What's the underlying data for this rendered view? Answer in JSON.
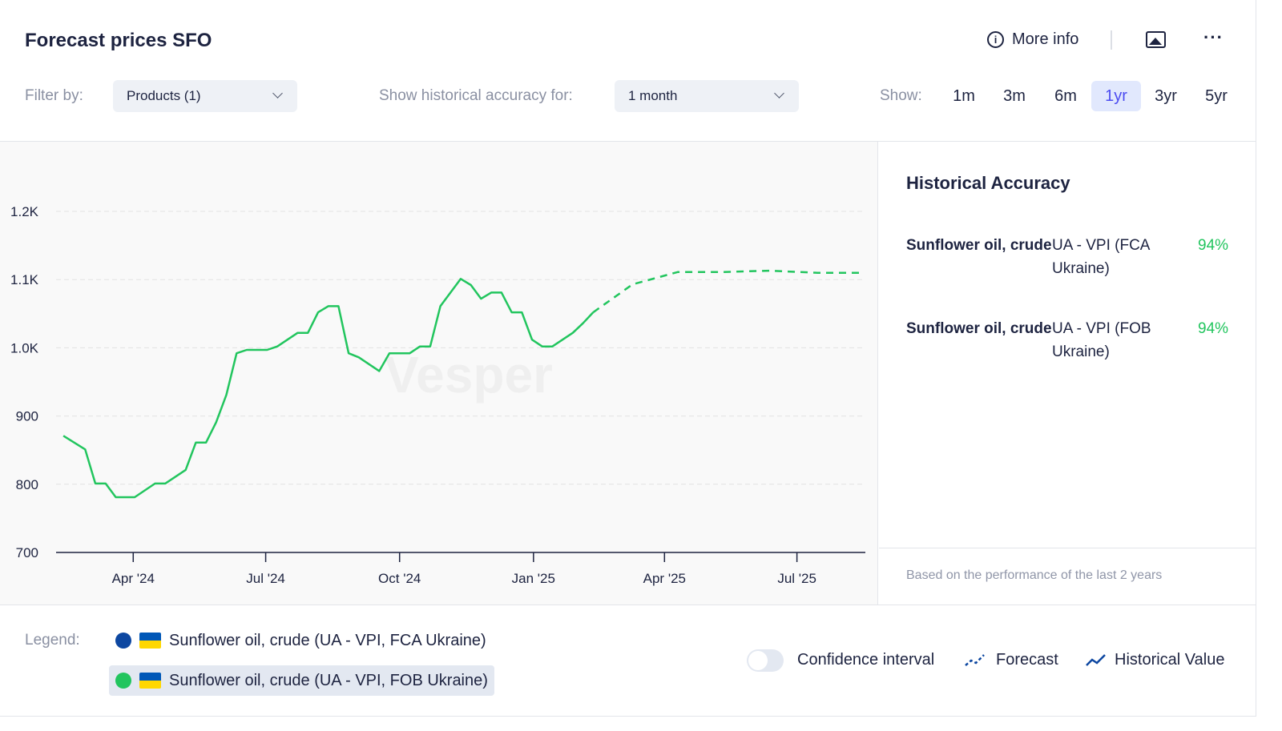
{
  "header": {
    "title": "Forecast prices SFO",
    "more_info": "More info",
    "icons": [
      "info-icon",
      "image-icon",
      "more-icon"
    ]
  },
  "filters": {
    "filter_label": "Filter by:",
    "filter_value": "Products (1)",
    "accuracy_label": "Show historical accuracy for:",
    "accuracy_value": "1 month",
    "show_label": "Show:",
    "ranges": [
      "1m",
      "3m",
      "6m",
      "1yr",
      "3yr",
      "5yr"
    ],
    "active_range": "1yr"
  },
  "panel": {
    "title": "Historical Accuracy",
    "items": [
      {
        "product": "Sunflower oil, crude",
        "market": "UA - VPI (FCA Ukraine)",
        "value": "94%"
      },
      {
        "product": "Sunflower oil, crude",
        "market": "UA - VPI (FOB Ukraine)",
        "value": "94%"
      }
    ],
    "note": "Based on the performance of the last 2 years"
  },
  "legend": {
    "label": "Legend:",
    "items": [
      {
        "label": "Sunflower oil, crude (UA - VPI, FCA Ukraine)",
        "color": "#0d47a1",
        "selected": false
      },
      {
        "label": "Sunflower oil, crude (UA - VPI, FOB Ukraine)",
        "color": "#22c55e",
        "selected": true
      }
    ],
    "confidence": "Confidence interval",
    "confidence_on": false,
    "forecast": "Forecast",
    "historical": "Historical Value"
  },
  "chart_data": {
    "type": "line",
    "watermark": "Vesper",
    "xlim": [
      "2024-02-08",
      "2025-08-17"
    ],
    "ylim": [
      700,
      1250
    ],
    "yticks": [
      700,
      800,
      900,
      1000,
      1100,
      1200
    ],
    "ytick_labels": [
      "700",
      "800",
      "900",
      "1.0K",
      "1.1K",
      "1.2K"
    ],
    "xticks": [
      "2024-04-01",
      "2024-07-01",
      "2024-10-01",
      "2025-01-01",
      "2025-04-01",
      "2025-07-01"
    ],
    "xtick_labels": [
      "Apr '24",
      "Jul '24",
      "Oct '24",
      "Jan '25",
      "Apr '25",
      "Jul '25"
    ],
    "grid": true,
    "color": "#22c55e",
    "series": [
      {
        "kind": "historical",
        "points": [
          [
            "2024-02-13",
            871
          ],
          [
            "2024-02-28",
            851
          ],
          [
            "2024-03-06",
            801
          ],
          [
            "2024-03-13",
            801
          ],
          [
            "2024-03-20",
            781
          ],
          [
            "2024-04-02",
            781
          ],
          [
            "2024-04-16",
            801
          ],
          [
            "2024-04-23",
            801
          ],
          [
            "2024-05-07",
            821
          ],
          [
            "2024-05-14",
            861
          ],
          [
            "2024-05-21",
            861
          ],
          [
            "2024-05-28",
            891
          ],
          [
            "2024-06-04",
            931
          ],
          [
            "2024-06-11",
            992
          ],
          [
            "2024-06-18",
            997
          ],
          [
            "2024-07-02",
            997
          ],
          [
            "2024-07-09",
            1002
          ],
          [
            "2024-07-23",
            1022
          ],
          [
            "2024-07-30",
            1022
          ],
          [
            "2024-08-06",
            1052
          ],
          [
            "2024-08-13",
            1061
          ],
          [
            "2024-08-20",
            1061
          ],
          [
            "2024-08-27",
            992
          ],
          [
            "2024-09-03",
            986
          ],
          [
            "2024-09-17",
            966
          ],
          [
            "2024-09-24",
            992
          ],
          [
            "2024-10-08",
            992
          ],
          [
            "2024-10-15",
            1002
          ],
          [
            "2024-10-22",
            1002
          ],
          [
            "2024-10-29",
            1061
          ],
          [
            "2024-11-12",
            1101
          ],
          [
            "2024-11-19",
            1092
          ],
          [
            "2024-11-26",
            1072
          ],
          [
            "2024-12-03",
            1081
          ],
          [
            "2024-12-10",
            1081
          ],
          [
            "2024-12-17",
            1052
          ],
          [
            "2024-12-24",
            1052
          ],
          [
            "2024-12-31",
            1012
          ],
          [
            "2025-01-07",
            1002
          ],
          [
            "2025-01-14",
            1002
          ],
          [
            "2025-01-28",
            1022
          ],
          [
            "2025-02-04",
            1036
          ],
          [
            "2025-02-11",
            1052
          ]
        ]
      },
      {
        "kind": "forecast",
        "points": [
          [
            "2025-02-11",
            1052
          ],
          [
            "2025-03-10",
            1093
          ],
          [
            "2025-04-10",
            1111
          ],
          [
            "2025-05-10",
            1111
          ],
          [
            "2025-06-12",
            1113
          ],
          [
            "2025-07-15",
            1110
          ],
          [
            "2025-08-13",
            1110
          ]
        ]
      }
    ]
  }
}
